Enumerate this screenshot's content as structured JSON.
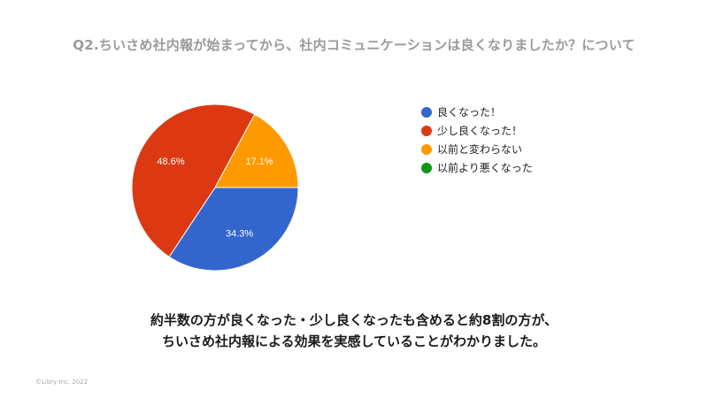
{
  "title": "Q2.ちいさめ社内報が始まってから、社内コミュニケーションは良くなりましたか？について",
  "chart_data": {
    "type": "pie",
    "categories": [
      "良くなった！",
      "少し良くなった！",
      "以前と変わらない",
      "以前より悪くなった"
    ],
    "values": [
      34.3,
      48.6,
      17.1,
      0
    ],
    "labels": [
      "34.3%",
      "48.6%",
      "17.1%",
      ""
    ],
    "colors": [
      "#3366cc",
      "#dc3912",
      "#ff9900",
      "#109618"
    ],
    "legend": "right"
  },
  "summary": {
    "line1": "約半数の方が良くなった・少し良くなったも含めると約8割の方が、",
    "line2": "ちいさめ社内報による効果を実感していることがわかりました。"
  },
  "footer": "©Libry Inc. 2022"
}
